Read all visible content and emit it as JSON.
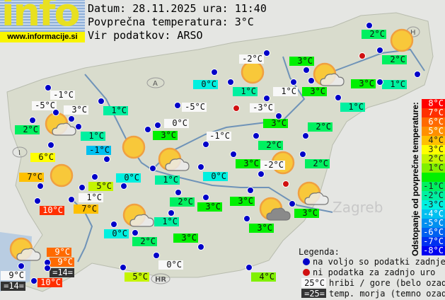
{
  "header": {
    "logo_text": "info",
    "site": "www.informacije.si",
    "date_line": "Datum: 28.11.2025 ura: 11:40",
    "avg_line": "Povprečna temperatura: 3°C",
    "source_line": "Vir podatkov: ARSO"
  },
  "average_temperature": 3,
  "colors": {
    "available_dot": "#0000c8",
    "unavailable_dot": "#d01010",
    "hill_bg": "#f8f8f8",
    "sea_bg": "#333333"
  },
  "stations": [
    {
      "t": "2°C",
      "kind": "land"
    },
    {
      "t": "-2°C",
      "kind": "hill"
    },
    {
      "t": "3°C",
      "kind": "land"
    },
    {
      "t": "2°C",
      "kind": "land"
    },
    {
      "t": "0°C",
      "kind": "land"
    },
    {
      "t": "1°C",
      "kind": "land"
    },
    {
      "t": "1°C",
      "kind": "hill"
    },
    {
      "t": "3°C",
      "kind": "land"
    },
    {
      "t": "3°C",
      "kind": "land"
    },
    {
      "t": "1°C",
      "kind": "land"
    },
    {
      "t": "-1°C",
      "kind": "hill"
    },
    {
      "t": "-5°C",
      "kind": "hill"
    },
    {
      "t": "3°C",
      "kind": "hill"
    },
    {
      "t": "1°C",
      "kind": "land"
    },
    {
      "t": "-5°C",
      "kind": "hill"
    },
    {
      "t": "1°C",
      "kind": "land"
    },
    {
      "t": "-3°C",
      "kind": "hill"
    },
    {
      "t": "2°C",
      "kind": "land"
    },
    {
      "t": "0°C",
      "kind": "hill"
    },
    {
      "t": "3°C",
      "kind": "land"
    },
    {
      "t": "3°C",
      "kind": "land"
    },
    {
      "t": "2°C",
      "kind": "land"
    },
    {
      "t": "1°C",
      "kind": "land"
    },
    {
      "t": "-1°C",
      "kind": "hill"
    },
    {
      "t": "2°C",
      "kind": "land"
    },
    {
      "t": "-1°C",
      "kind": "land"
    },
    {
      "t": "6°C",
      "kind": "land"
    },
    {
      "t": "3°C",
      "kind": "land"
    },
    {
      "t": "-2°C",
      "kind": "hill"
    },
    {
      "t": "2°C",
      "kind": "land"
    },
    {
      "t": "7°C",
      "kind": "land"
    },
    {
      "t": "0°C",
      "kind": "land"
    },
    {
      "t": "5°C",
      "kind": "land"
    },
    {
      "t": "1°C",
      "kind": "land"
    },
    {
      "t": "0°C",
      "kind": "land"
    },
    {
      "t": "1°C",
      "kind": "hill"
    },
    {
      "t": "10°C",
      "kind": "land"
    },
    {
      "t": "7°C",
      "kind": "land"
    },
    {
      "t": "2°C",
      "kind": "land"
    },
    {
      "t": "3°C",
      "kind": "land"
    },
    {
      "t": "3°C",
      "kind": "land"
    },
    {
      "t": "3°C",
      "kind": "land"
    },
    {
      "t": "1°C",
      "kind": "land"
    },
    {
      "t": "3°C",
      "kind": "land"
    },
    {
      "t": "0°C",
      "kind": "land"
    },
    {
      "t": "2°C",
      "kind": "land"
    },
    {
      "t": "3°C",
      "kind": "land"
    },
    {
      "t": "9°C",
      "kind": "land"
    },
    {
      "t": "9°C",
      "kind": "land"
    },
    {
      "t": "=14=",
      "kind": "sea"
    },
    {
      "t": "9°C",
      "kind": "hill"
    },
    {
      "t": "=14=",
      "kind": "sea"
    },
    {
      "t": "10°C",
      "kind": "land"
    },
    {
      "t": "0°C",
      "kind": "hill"
    },
    {
      "t": "5°C",
      "kind": "land"
    },
    {
      "t": "4°C",
      "kind": "land"
    }
  ],
  "weather_icons": [
    "sun",
    "sun",
    "sun-cloud",
    "sun-cloud",
    "sun",
    "sun-cloud",
    "sun",
    "sun",
    "sun-cloud-dark",
    "sun-cloud",
    "sun-cloud",
    "sun-cloud"
  ],
  "map_labels": [
    "A",
    "I",
    "H",
    "HR",
    "Zagreb"
  ],
  "scale": {
    "title": "Odstopanje od povprečne temperature:",
    "steps": [
      {
        "label": "8°C",
        "color": "#ff0000"
      },
      {
        "label": "7°C",
        "color": "#ff3000"
      },
      {
        "label": "6°C",
        "color": "#ff6a00"
      },
      {
        "label": "5°C",
        "color": "#ff9000"
      },
      {
        "label": "4°C",
        "color": "#ffc000"
      },
      {
        "label": "3°C",
        "color": "#ffff00"
      },
      {
        "label": "2°C",
        "color": "#c4f400"
      },
      {
        "label": "1°C",
        "color": "#80f000"
      },
      {
        "label": "",
        "color": "#00f000"
      },
      {
        "label": "-1°C",
        "color": "#00f060"
      },
      {
        "label": "-2°C",
        "color": "#00f0a0"
      },
      {
        "label": "-3°C",
        "color": "#00f0e0"
      },
      {
        "label": "-4°C",
        "color": "#00c0f0"
      },
      {
        "label": "-5°C",
        "color": "#0090f0"
      },
      {
        "label": "-6°C",
        "color": "#0060f0"
      },
      {
        "label": "-7°C",
        "color": "#0030f0"
      },
      {
        "label": "-8°C",
        "color": "#0000f0"
      }
    ]
  },
  "legend": {
    "title": "Legenda:",
    "available": "na voljo so podatki zadnje ure",
    "unavailable": "ni podatka za zadnjo uro",
    "hill_sample": "25°C",
    "hill_text": "hribi / gore (belo ozadje)",
    "sea_sample": "=25=",
    "sea_text": "temp. morja (temno ozadje)"
  }
}
